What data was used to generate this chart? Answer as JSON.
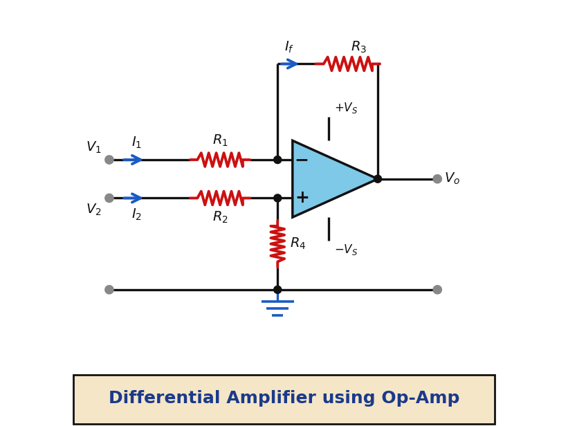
{
  "title": "Differential Amplifier using Op-Amp",
  "bg_color": "#ffffff",
  "title_bg": "#f5e6c8",
  "title_color": "#1a3a8a",
  "line_color": "#111111",
  "resistor_color": "#cc1111",
  "arrow_color": "#1a5bc4",
  "opamp_fill": "#7ec8e8",
  "opamp_stroke": "#111111",
  "ground_color": "#1a5bc4",
  "dot_color": "#111111",
  "terminal_color": "#888888",
  "label_color": "#111111",
  "lw": 2.4,
  "res_lw": 2.8
}
